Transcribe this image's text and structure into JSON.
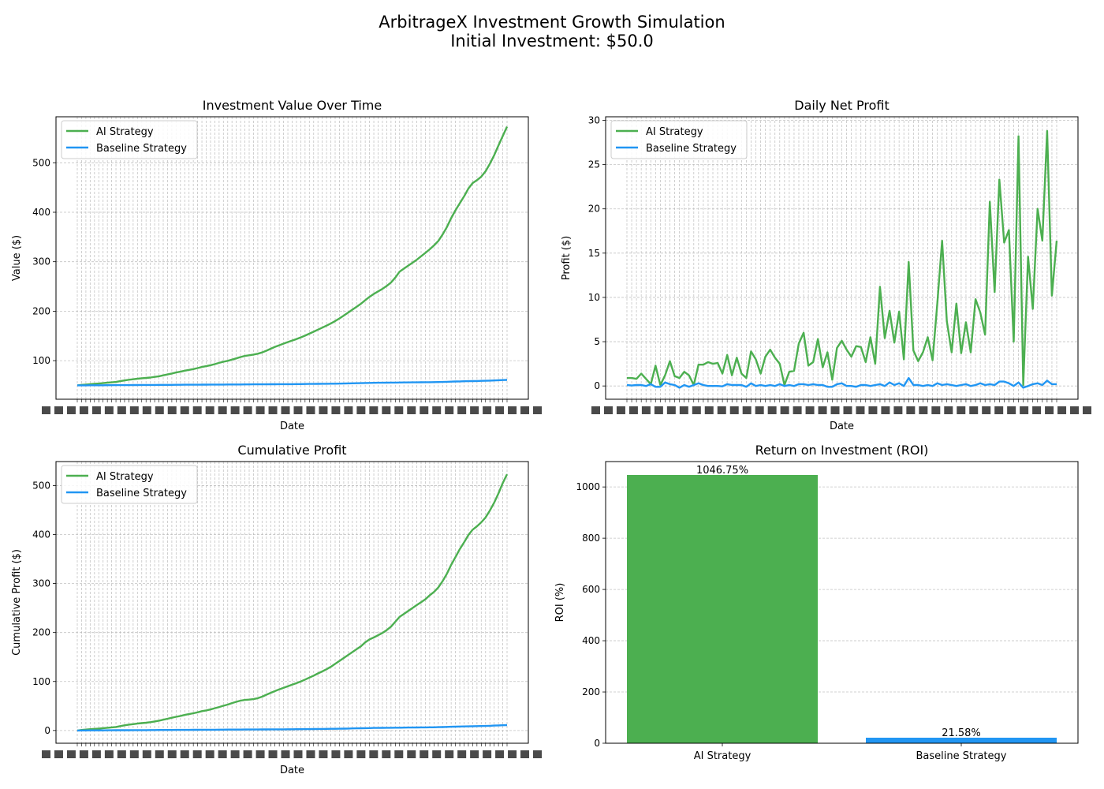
{
  "figure": {
    "title_line1": "ArbitrageX Investment Growth Simulation",
    "title_line2": "Initial Investment: $50.0"
  },
  "colors": {
    "ai": "#4caf50",
    "baseline": "#2196f3",
    "grid": "#b0b0b0"
  },
  "chart_data": [
    {
      "type": "line",
      "title": "Investment Value Over Time",
      "xlabel": "Date",
      "ylabel": "Value ($)",
      "x_tick_labels": "dense overlapping date labels (illegible)",
      "ylim": [
        22,
        593
      ],
      "yticks": [
        100,
        200,
        300,
        400,
        500
      ],
      "grid": true,
      "legend": "top-left",
      "series": [
        {
          "name": "AI Strategy",
          "color": "#4caf50",
          "values": [
            50.0,
            51.0,
            51.6,
            52.5,
            53.2,
            53.8,
            54.5,
            55.5,
            56.2,
            56.9,
            58.5,
            60.0,
            61.4,
            62.4,
            63.5,
            64.4,
            65.0,
            65.9,
            67.1,
            68.4,
            70.3,
            72.1,
            74.0,
            76.0,
            77.7,
            79.8,
            81.3,
            83.0,
            85.0,
            87.2,
            88.8,
            90.7,
            93.0,
            95.6,
            97.8,
            99.6,
            102.1,
            104.6,
            107.4,
            109.5,
            110.8,
            112.3,
            114.0,
            116.6,
            120.1,
            124.0,
            127.9,
            131.1,
            134.4,
            137.6,
            140.6,
            143.6,
            147.1,
            150.6,
            154.5,
            158.5,
            162.6,
            166.7,
            170.8,
            175.3,
            180.0,
            185.4,
            191.0,
            197.0,
            203.0,
            209.0,
            215.0,
            222.0,
            229.0,
            235.0,
            240.0,
            245.0,
            251.0,
            258.0,
            268.0,
            280.0,
            286.0,
            292.0,
            298.0,
            304.0,
            311.0,
            318.0,
            325.0,
            333.0,
            342.0,
            355.0,
            370.0,
            388.0,
            404.0,
            418.0,
            432.0,
            448.0,
            459.0,
            465.0,
            472.0,
            483.0,
            498.0,
            515.0,
            535.0,
            554.0,
            573.0
          ]
        },
        {
          "name": "Baseline Strategy",
          "color": "#2196f3",
          "values": [
            50.0,
            50.1,
            50.1,
            50.2,
            50.2,
            50.3,
            50.3,
            50.4,
            50.4,
            50.5,
            50.5,
            50.6,
            50.6,
            50.7,
            50.7,
            50.8,
            50.8,
            50.9,
            50.9,
            51.0,
            51.0,
            51.1,
            51.1,
            51.2,
            51.2,
            51.3,
            51.3,
            51.4,
            51.4,
            51.5,
            51.5,
            51.6,
            51.6,
            51.7,
            51.7,
            51.8,
            51.8,
            51.9,
            51.9,
            52.0,
            52.0,
            52.1,
            52.1,
            52.2,
            52.2,
            52.3,
            52.3,
            52.4,
            52.4,
            52.5,
            52.5,
            52.6,
            52.7,
            52.8,
            52.9,
            53.0,
            53.1,
            53.2,
            53.3,
            53.4,
            53.5,
            53.6,
            53.8,
            54.0,
            54.2,
            54.4,
            54.6,
            54.8,
            55.0,
            55.2,
            55.3,
            55.4,
            55.5,
            55.6,
            55.7,
            55.8,
            55.9,
            56.0,
            56.1,
            56.2,
            56.3,
            56.4,
            56.5,
            56.6,
            56.8,
            57.0,
            57.3,
            57.6,
            57.9,
            58.1,
            58.3,
            58.5,
            58.7,
            58.9,
            59.1,
            59.3,
            59.6,
            60.0,
            60.4,
            60.8,
            61.1
          ]
        }
      ]
    },
    {
      "type": "line",
      "title": "Daily Net Profit",
      "xlabel": "Date",
      "ylabel": "Profit ($)",
      "x_tick_labels": "dense overlapping date labels (illegible)",
      "ylim": [
        -1.5,
        30.4
      ],
      "yticks": [
        0,
        5,
        10,
        15,
        20,
        25,
        30
      ],
      "grid": true,
      "legend": "top-left",
      "series": [
        {
          "name": "AI Strategy",
          "color": "#4caf50",
          "values": [
            0.9,
            0.9,
            0.8,
            1.4,
            0.8,
            0.2,
            2.3,
            0.1,
            1.2,
            2.8,
            1.1,
            0.9,
            1.6,
            1.2,
            0.1,
            2.4,
            2.4,
            2.7,
            2.5,
            2.6,
            1.4,
            3.5,
            1.2,
            3.2,
            1.4,
            0.9,
            3.9,
            3.0,
            1.4,
            3.3,
            4.1,
            3.2,
            2.5,
            0.1,
            1.6,
            1.7,
            4.8,
            6.0,
            2.3,
            2.7,
            5.3,
            2.1,
            3.8,
            0.7,
            4.3,
            5.1,
            4.1,
            3.3,
            4.5,
            4.4,
            2.7,
            5.5,
            2.5,
            11.2,
            5.4,
            8.5,
            4.9,
            8.4,
            3.0,
            14.0,
            4.0,
            2.8,
            3.8,
            5.5,
            2.9,
            9.3,
            16.4,
            7.3,
            3.8,
            9.3,
            3.7,
            7.2,
            3.8,
            9.8,
            8.3,
            5.8,
            20.8,
            10.6,
            23.3,
            16.2,
            17.6,
            5.0,
            28.2,
            0.1,
            14.6,
            8.7,
            20.0,
            16.4,
            28.8,
            10.2,
            16.4
          ]
        },
        {
          "name": "Baseline Strategy",
          "color": "#2196f3",
          "values": [
            0.1,
            0.05,
            0.1,
            0.1,
            0.0,
            0.2,
            -0.1,
            -0.1,
            0.4,
            0.2,
            0.1,
            -0.2,
            0.1,
            -0.1,
            0.1,
            0.3,
            0.1,
            0.0,
            0.0,
            0.0,
            -0.05,
            0.2,
            0.1,
            0.1,
            0.1,
            -0.1,
            0.3,
            0.0,
            0.1,
            0.0,
            0.1,
            0.0,
            0.2,
            0.0,
            0.1,
            0.0,
            0.2,
            0.2,
            0.1,
            0.2,
            0.1,
            0.1,
            -0.1,
            -0.1,
            0.2,
            0.3,
            0.0,
            0.0,
            -0.1,
            0.1,
            0.1,
            0.0,
            0.1,
            0.2,
            0.0,
            0.4,
            0.1,
            0.3,
            0.0,
            0.9,
            0.1,
            0.1,
            0.0,
            0.1,
            0.0,
            0.3,
            0.1,
            0.2,
            0.1,
            0.0,
            0.1,
            0.2,
            0.0,
            0.1,
            0.3,
            0.1,
            0.2,
            0.1,
            0.5,
            0.5,
            0.3,
            0.0,
            0.4,
            -0.2,
            0.0,
            0.2,
            0.3,
            0.1,
            0.6,
            0.2,
            0.2
          ]
        }
      ]
    },
    {
      "type": "line",
      "title": "Cumulative Profit",
      "xlabel": "Date",
      "ylabel": "Cumulative Profit ($)",
      "x_tick_labels": "dense overlapping date labels (illegible)",
      "ylim": [
        -26,
        549
      ],
      "yticks": [
        0,
        100,
        200,
        300,
        400,
        500
      ],
      "grid": true,
      "legend": "top-left",
      "series": [
        {
          "name": "AI Strategy",
          "color": "#4caf50",
          "values": [
            0.0,
            1.0,
            1.8,
            2.6,
            3.3,
            4.0,
            4.8,
            5.6,
            6.3,
            7.2,
            9.0,
            10.5,
            12.0,
            13.0,
            14.2,
            15.0,
            15.8,
            17.0,
            18.5,
            20.0,
            22.0,
            24.0,
            26.0,
            28.0,
            29.7,
            31.8,
            33.5,
            35.2,
            37.2,
            39.5,
            41.0,
            43.0,
            45.5,
            48.0,
            50.5,
            53.0,
            56.0,
            58.5,
            61.0,
            62.5,
            63.0,
            64.0,
            66.0,
            69.0,
            73.0,
            77.0,
            80.5,
            84.0,
            87.0,
            90.5,
            93.5,
            96.5,
            100.0,
            104.0,
            108.0,
            112.0,
            116.5,
            120.5,
            125.0,
            130.0,
            136.0,
            142.0,
            148.0,
            154.0,
            160.0,
            166.0,
            172.0,
            180.0,
            186.0,
            190.0,
            194.5,
            199.0,
            205.0,
            212.0,
            222.0,
            232.0,
            238.0,
            244.0,
            250.0,
            256.0,
            262.0,
            268.0,
            276.0,
            283.0,
            292.0,
            305.0,
            320.0,
            338.0,
            354.0,
            370.0,
            384.0,
            399.0,
            410.0,
            417.0,
            425.0,
            435.0,
            449.0,
            465.0,
            484.0,
            505.0,
            523.0
          ]
        },
        {
          "name": "Baseline Strategy",
          "color": "#2196f3",
          "values": [
            0.0,
            0.1,
            0.1,
            0.2,
            0.2,
            0.3,
            0.3,
            0.4,
            0.4,
            0.5,
            0.5,
            0.6,
            0.6,
            0.7,
            0.7,
            0.8,
            0.8,
            0.9,
            0.9,
            1.0,
            1.0,
            1.1,
            1.1,
            1.2,
            1.2,
            1.3,
            1.3,
            1.4,
            1.4,
            1.5,
            1.5,
            1.6,
            1.6,
            1.7,
            1.7,
            1.8,
            1.8,
            1.9,
            1.9,
            2.0,
            2.0,
            2.1,
            2.1,
            2.2,
            2.2,
            2.3,
            2.3,
            2.4,
            2.4,
            2.5,
            2.5,
            2.6,
            2.7,
            2.8,
            2.9,
            3.0,
            3.1,
            3.2,
            3.3,
            3.4,
            3.5,
            3.6,
            3.8,
            4.0,
            4.2,
            4.4,
            4.6,
            4.8,
            5.0,
            5.2,
            5.3,
            5.4,
            5.5,
            5.6,
            5.7,
            5.8,
            5.9,
            6.0,
            6.1,
            6.2,
            6.3,
            6.4,
            6.5,
            6.6,
            6.8,
            7.0,
            7.3,
            7.6,
            7.9,
            8.1,
            8.3,
            8.5,
            8.7,
            8.9,
            9.1,
            9.3,
            9.6,
            10.0,
            10.4,
            10.8,
            11.1
          ]
        }
      ]
    },
    {
      "type": "bar",
      "title": "Return on Investment (ROI)",
      "ylabel": "ROI (%)",
      "ylim": [
        0,
        1099
      ],
      "yticks": [
        0,
        200,
        400,
        600,
        800,
        1000
      ],
      "grid": true,
      "categories": [
        "AI Strategy",
        "Baseline Strategy"
      ],
      "values": [
        1046.75,
        21.58
      ],
      "value_labels": [
        "1046.75%",
        "21.58%"
      ],
      "colors": [
        "#4caf50",
        "#2196f3"
      ]
    }
  ]
}
